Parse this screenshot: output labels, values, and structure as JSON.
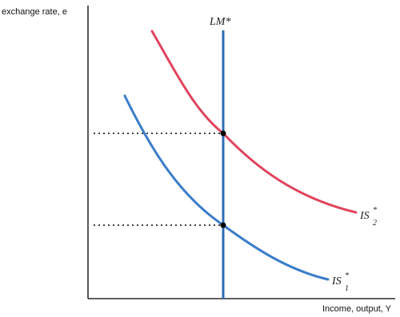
{
  "axes": {
    "y_label": "exchange rate, e",
    "x_label": "Income, output, Y"
  },
  "curves": {
    "lm": {
      "label": "LM*",
      "color": "#2e6db4"
    },
    "is1": {
      "label": "IS",
      "superscript": "*",
      "subscript": "1",
      "color": "#3b7dc9"
    },
    "is2": {
      "label": "IS",
      "superscript": "*",
      "subscript": "2",
      "color": "#e0445d"
    }
  },
  "colors": {
    "axis": "#000000",
    "guide": "#000000",
    "point": "#000000"
  }
}
